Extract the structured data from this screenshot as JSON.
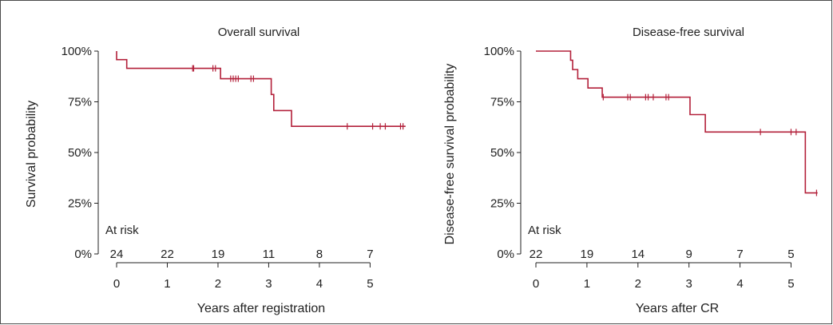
{
  "colors": {
    "curve": "#b3203a",
    "axis": "#222222"
  },
  "chart_data": [
    {
      "type": "line",
      "subtype": "kaplan-meier-step",
      "title": "Overall survival",
      "xlabel": "Years after registration",
      "ylabel": "Survival probability",
      "xlim": [
        0,
        5.75
      ],
      "ylim": [
        0,
        1
      ],
      "xticks": [
        "0",
        "1",
        "2",
        "3",
        "4",
        "5"
      ],
      "yticks": [
        "0%",
        "25%",
        "50%",
        "75%",
        "100%"
      ],
      "series": [
        {
          "steps": [
            [
              0,
              1.0
            ],
            [
              0.0,
              0.958
            ],
            [
              0.2,
              0.915
            ],
            [
              2.05,
              0.864
            ],
            [
              3.05,
              0.786
            ],
            [
              3.1,
              0.707
            ],
            [
              3.45,
              0.629
            ],
            [
              5.7,
              0.629
            ]
          ],
          "censor_times": [
            1.5,
            1.52,
            1.9,
            1.95,
            2.25,
            2.3,
            2.35,
            2.4,
            2.65,
            2.7,
            4.55,
            5.05,
            5.2,
            5.3,
            5.6,
            5.65
          ]
        }
      ],
      "at_risk_label": "At risk",
      "at_risk": {
        "times": [
          0,
          1,
          2,
          3,
          4,
          5
        ],
        "labels": [
          "24",
          "22",
          "19",
          "11",
          "8",
          "7"
        ]
      }
    },
    {
      "type": "line",
      "subtype": "kaplan-meier-step",
      "title": "Disease-free survival",
      "xlabel": "Years after CR",
      "ylabel": "Disease-free survival probability",
      "xlim": [
        0,
        5.65
      ],
      "ylim": [
        0,
        1
      ],
      "xticks": [
        "0",
        "1",
        "2",
        "3",
        "4",
        "5"
      ],
      "yticks": [
        "0%",
        "25%",
        "50%",
        "75%",
        "100%"
      ],
      "series": [
        {
          "steps": [
            [
              0,
              1.0
            ],
            [
              0.68,
              0.955
            ],
            [
              0.72,
              0.909
            ],
            [
              0.82,
              0.864
            ],
            [
              1.02,
              0.818
            ],
            [
              1.3,
              0.773
            ],
            [
              3.02,
              0.687
            ],
            [
              3.32,
              0.601
            ],
            [
              5.28,
              0.301
            ],
            [
              5.52,
              0.301
            ]
          ],
          "censor_times": [
            1.32,
            1.8,
            1.85,
            2.15,
            2.2,
            2.3,
            2.55,
            2.6,
            4.4,
            5.0,
            5.1,
            5.5
          ]
        }
      ],
      "at_risk_label": "At risk",
      "at_risk": {
        "times": [
          0,
          1,
          2,
          3,
          4,
          5
        ],
        "labels": [
          "22",
          "19",
          "14",
          "9",
          "7",
          "5"
        ]
      }
    }
  ]
}
